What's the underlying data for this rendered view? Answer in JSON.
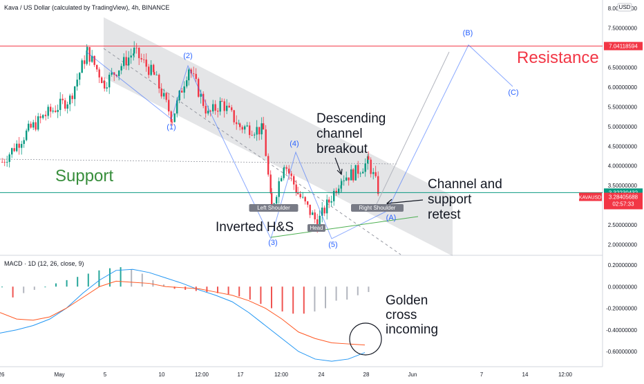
{
  "header": {
    "symbol_title": "Kava / US Dollar (calculated by TradingView), 4h, BINANCE",
    "currency_badge": "USD"
  },
  "macd_title": "MACD · 1D (12, 26, close, 9)",
  "chart_data": [
    {
      "type": "candlestick",
      "title": "Kava / US Dollar (calculated by TradingView), 4h, BINANCE",
      "y_unit": "USD",
      "ylim": [
        1.8,
        8.0
      ],
      "y_ticks": [
        "8.00000000",
        "7.50000000",
        "7.00000000",
        "6.50000000",
        "6.00000000",
        "5.50000000",
        "5.00000000",
        "4.50000000",
        "4.00000000",
        "3.50000000",
        "2.50000000",
        "2.00000000"
      ],
      "x_ticks": [
        "26",
        "May",
        "5",
        "10",
        "12:00",
        "17",
        "12:00",
        "24",
        "28",
        "Jun",
        "7",
        "14",
        "12:00"
      ],
      "price_path": [
        {
          "x": "Apr 26",
          "y": 4.1
        },
        {
          "x": "Apr 28",
          "y": 4.9
        },
        {
          "x": "Apr 30",
          "y": 5.3
        },
        {
          "x": "May 2",
          "y": 5.7
        },
        {
          "x": "May 4",
          "y": 6.9
        },
        {
          "x": "May 5",
          "y": 6.1
        },
        {
          "x": "May 7",
          "y": 6.9
        },
        {
          "x": "May 9",
          "y": 6.3
        },
        {
          "x": "May 10",
          "y": 5.2
        },
        {
          "x": "May 11",
          "y": 6.5
        },
        {
          "x": "May 13",
          "y": 5.3
        },
        {
          "x": "May 15",
          "y": 5.6
        },
        {
          "x": "May 17",
          "y": 5.0
        },
        {
          "x": "May 19",
          "y": 4.9
        },
        {
          "x": "May 20",
          "y": 2.9
        },
        {
          "x": "May 21",
          "y": 4.1
        },
        {
          "x": "May 22",
          "y": 3.3
        },
        {
          "x": "May 23",
          "y": 2.55
        },
        {
          "x": "May 24",
          "y": 3.1
        },
        {
          "x": "May 25",
          "y": 3.7
        },
        {
          "x": "May 26",
          "y": 3.8
        },
        {
          "x": "May 27",
          "y": 4.1
        },
        {
          "x": "May 28",
          "y": 3.3
        }
      ],
      "price_lines": [
        {
          "label": "7.04118594",
          "value": 7.04118594,
          "color": "#f23645"
        },
        {
          "label": "3.32230432",
          "value": 3.32230432,
          "color": "#089981"
        }
      ],
      "last_price": {
        "label": "3.28405688",
        "ticker": "KAVAUSD",
        "countdown": "02:57:33",
        "value": 3.28405688,
        "color": "#f23645"
      },
      "annotations": {
        "resistance": "Resistance",
        "support": "Support",
        "descending_breakout": [
          "Descending",
          "channel",
          "breakout"
        ],
        "channel_retest": [
          "Channel and",
          "support",
          "retest"
        ],
        "inverted_hs": "Inverted H&S",
        "left_shoulder": "Left Shoulder",
        "head": "Head",
        "right_shoulder": "Right Shoulder",
        "waves": [
          "(1)",
          "(2)",
          "(3)",
          "(4)",
          "(5)",
          "(A)",
          "(B)",
          "(C)"
        ]
      }
    },
    {
      "type": "macd",
      "title": "MACD · 1D (12, 26, close, 9)",
      "ylim": [
        -0.7,
        0.25
      ],
      "y_ticks": [
        "0.20000000",
        "0.00000000",
        "-0.20000000",
        "-0.40000000",
        "-0.60000000"
      ],
      "histogram": [
        0.0,
        -0.1,
        -0.06,
        -0.03,
        0.0,
        0.03,
        0.06,
        0.09,
        0.12,
        0.15,
        0.17,
        0.18,
        0.16,
        0.12,
        0.06,
        0.02,
        -0.02,
        -0.03,
        -0.04,
        -0.05,
        -0.06,
        -0.07,
        -0.09,
        -0.12,
        -0.16,
        -0.2,
        -0.23,
        -0.25,
        -0.25,
        -0.23,
        -0.2,
        -0.13,
        -0.12,
        -0.08,
        -0.05
      ],
      "histogram_colors": {
        "rising_pos": "#26a69a",
        "falling_pos": "#ffffff",
        "falling_neg": "#ef5350",
        "rising_neg": "#ffffff"
      },
      "macd_line": [
        -0.43,
        -0.4,
        -0.36,
        -0.3,
        -0.2,
        -0.06,
        0.06,
        0.15,
        0.16,
        0.13,
        0.08,
        0.03,
        -0.03,
        -0.08,
        -0.14,
        -0.24,
        -0.36,
        -0.48,
        -0.6,
        -0.67,
        -0.69,
        -0.67,
        -0.61
      ],
      "signal_line": [
        -0.24,
        -0.3,
        -0.31,
        -0.28,
        -0.2,
        -0.1,
        0.0,
        0.05,
        0.04,
        0.03,
        0.0,
        -0.01,
        -0.02,
        -0.05,
        -0.08,
        -0.13,
        -0.2,
        -0.3,
        -0.42,
        -0.48,
        -0.52,
        -0.53,
        -0.54
      ],
      "colors": {
        "macd": "#2196f3",
        "signal": "#ff5722"
      },
      "annotation": [
        "Golden",
        "cross",
        "incoming"
      ]
    }
  ]
}
